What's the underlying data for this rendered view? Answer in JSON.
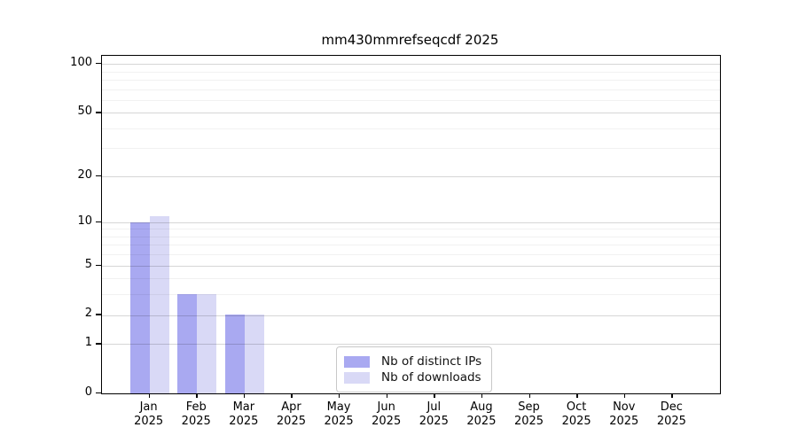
{
  "chart_data": {
    "type": "bar",
    "title": "mm430mmrefseqcdf 2025",
    "categories": [
      [
        "Jan",
        "2025"
      ],
      [
        "Feb",
        "2025"
      ],
      [
        "Mar",
        "2025"
      ],
      [
        "Apr",
        "2025"
      ],
      [
        "May",
        "2025"
      ],
      [
        "Jun",
        "2025"
      ],
      [
        "Jul",
        "2025"
      ],
      [
        "Aug",
        "2025"
      ],
      [
        "Sep",
        "2025"
      ],
      [
        "Oct",
        "2025"
      ],
      [
        "Nov",
        "2025"
      ],
      [
        "Dec",
        "2025"
      ]
    ],
    "series": [
      {
        "name": "Nb of distinct IPs",
        "color": "#a9a9f1",
        "values": [
          10,
          3,
          2,
          0,
          0,
          0,
          0,
          0,
          0,
          0,
          0,
          0
        ]
      },
      {
        "name": "Nb of downloads",
        "color": "#d9d9f6",
        "values": [
          11,
          3,
          2,
          0,
          0,
          0,
          0,
          0,
          0,
          0,
          0,
          0
        ]
      }
    ],
    "yscale": "log1p",
    "ylim": [
      0,
      112
    ],
    "yticks": [
      0,
      1,
      2,
      5,
      10,
      20,
      50,
      100
    ],
    "minor_grid_values": [
      3,
      4,
      6,
      7,
      8,
      9,
      30,
      40,
      60,
      70,
      80,
      90
    ],
    "grid": "on",
    "legend_position": "bottom-center"
  }
}
